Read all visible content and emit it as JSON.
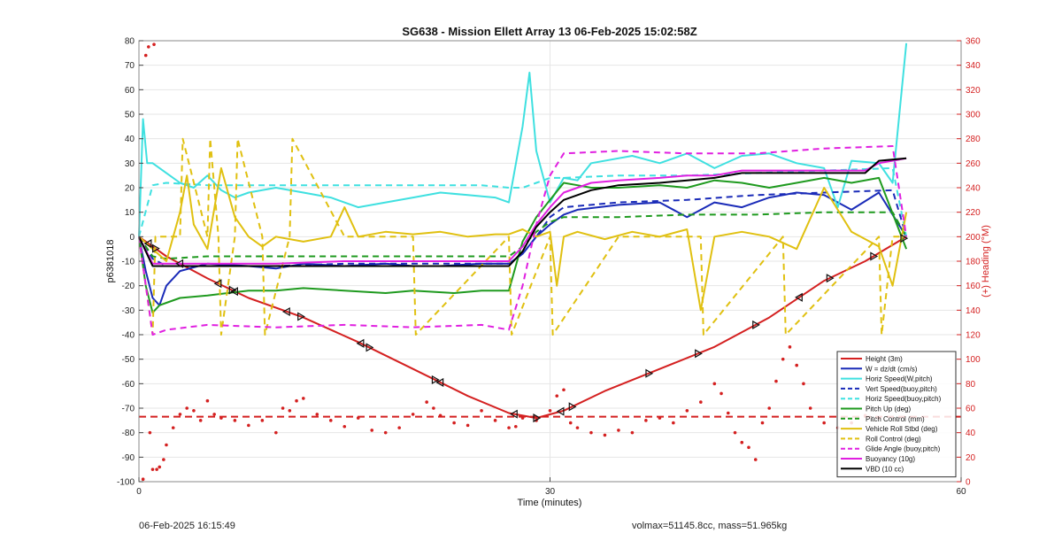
{
  "footer": {
    "timestamp": "06-Feb-2025 16:15:49",
    "summary": "volmax=51145.8cc, mass=51.965kg"
  },
  "chart_data": {
    "type": "line",
    "title": "SG638 - Mission Ellett Array 13 06-Feb-2025 15:02:58Z",
    "xlabel": "Time (minutes)",
    "ylabel": "p6381018",
    "ylabel_right": "(+) Heading (°M)",
    "xlim": [
      0,
      60
    ],
    "ylim": [
      -100,
      80
    ],
    "ylim_right": [
      0,
      360
    ],
    "xticks": [
      0,
      30,
      60
    ],
    "yticks": [
      -100,
      -90,
      -80,
      -70,
      -60,
      -50,
      -40,
      -30,
      -20,
      -10,
      0,
      10,
      20,
      30,
      40,
      50,
      60,
      70,
      80
    ],
    "yticks_right": [
      0,
      20,
      40,
      60,
      80,
      100,
      120,
      140,
      160,
      180,
      200,
      220,
      240,
      260,
      280,
      300,
      320,
      340,
      360
    ],
    "grid": true,
    "legend_position": "bottom-right",
    "colors": {
      "red": "#d42020",
      "blue": "#1a2bb8",
      "cyan": "#3fe0e0",
      "green": "#1f9a1f",
      "gold": "#e0c010",
      "magenta": "#e020e0",
      "black": "#000000"
    },
    "series": [
      {
        "name": "Height (3m)",
        "color": "red",
        "dash": false,
        "width": 2,
        "x": [
          0,
          2,
          5,
          8,
          12,
          16,
          20,
          24,
          27,
          29,
          31,
          34,
          38,
          42,
          46,
          50,
          53,
          56
        ],
        "y": [
          0,
          -8,
          -17,
          -25,
          -33,
          -43,
          -54,
          -65,
          -72,
          -74,
          -71,
          -63,
          -54,
          -45,
          -33,
          -18,
          -10,
          0
        ]
      },
      {
        "name": "W = dz/dt (cm/s)",
        "color": "blue",
        "dash": false,
        "width": 2,
        "x": [
          0,
          0.5,
          1,
          1.5,
          2,
          3,
          5,
          8,
          10,
          12,
          15,
          18,
          20,
          22,
          25,
          27,
          28,
          29,
          30,
          31,
          32,
          35,
          38,
          40,
          42,
          44,
          46,
          48,
          50,
          52,
          54,
          56
        ],
        "y": [
          0,
          -14,
          -25,
          -28,
          -20,
          -14,
          -11,
          -12,
          -13,
          -11,
          -12,
          -11,
          -12,
          -12,
          -11,
          -11,
          -7,
          0,
          5,
          9,
          11,
          13,
          14,
          8,
          14,
          12,
          16,
          18,
          17,
          11,
          18,
          0
        ]
      },
      {
        "name": "Horiz Speed(W,pitch)",
        "color": "cyan",
        "dash": false,
        "width": 2,
        "x": [
          0,
          0.3,
          0.6,
          1,
          2,
          3,
          4,
          5,
          6,
          7,
          8,
          10,
          12,
          14,
          16,
          18,
          20,
          22,
          24,
          26,
          27,
          28,
          28.5,
          29,
          30,
          31,
          32,
          33,
          36,
          38,
          40,
          42,
          44,
          46,
          48,
          50,
          51,
          52,
          54,
          55,
          56
        ],
        "y": [
          0,
          48,
          30,
          30,
          26,
          22,
          20,
          25,
          19,
          16,
          18,
          20,
          18,
          16,
          12,
          14,
          16,
          18,
          17,
          16,
          14,
          45,
          67,
          35,
          14,
          24,
          23,
          30,
          33,
          30,
          34,
          28,
          33,
          34,
          30,
          28,
          12,
          31,
          30,
          22,
          79
        ]
      },
      {
        "name": "Vert Speed(buoy,pitch)",
        "color": "blue",
        "dash": true,
        "width": 2,
        "x": [
          0,
          1,
          2,
          5,
          10,
          15,
          20,
          25,
          27,
          28,
          29,
          30,
          31,
          35,
          40,
          45,
          50,
          55,
          56
        ],
        "y": [
          0,
          -9,
          -12,
          -12,
          -12,
          -11,
          -11,
          -11,
          -11,
          -7,
          0,
          8,
          12,
          14,
          15,
          17,
          18,
          19,
          0
        ]
      },
      {
        "name": "Horiz Speed(buoy,pitch)",
        "color": "cyan",
        "dash": true,
        "width": 2,
        "x": [
          0,
          1,
          2,
          5,
          10,
          15,
          20,
          25,
          27,
          28,
          29,
          30,
          31,
          35,
          40,
          45,
          50,
          55,
          56
        ],
        "y": [
          0,
          21,
          22,
          21,
          21,
          21,
          21,
          21,
          20,
          20,
          22,
          24,
          24,
          25,
          25,
          26,
          27,
          28,
          0
        ]
      },
      {
        "name": "Pitch Up (deg)",
        "color": "green",
        "dash": false,
        "width": 2,
        "x": [
          0,
          0.5,
          1,
          1.5,
          2,
          3,
          5,
          8,
          10,
          12,
          15,
          18,
          20,
          23,
          25,
          27,
          28,
          29,
          30,
          31,
          32,
          33,
          35,
          38,
          40,
          42,
          44,
          46,
          48,
          50,
          52,
          54,
          56
        ],
        "y": [
          0,
          -20,
          -31,
          -28,
          -27,
          -25,
          -24,
          -22,
          -22,
          -21,
          -22,
          -23,
          -22,
          -23,
          -22,
          -22,
          -2,
          8,
          15,
          22,
          21,
          20,
          20,
          21,
          20,
          23,
          22,
          20,
          22,
          24,
          22,
          24,
          -5
        ]
      },
      {
        "name": "Pitch Control (mm)",
        "color": "green",
        "dash": true,
        "width": 2,
        "x": [
          0,
          1,
          2,
          5,
          10,
          15,
          20,
          25,
          27,
          28,
          29,
          30,
          31,
          35,
          40,
          45,
          50,
          55,
          56
        ],
        "y": [
          0,
          -8,
          -9,
          -8,
          -8,
          -8,
          -8,
          -8,
          -8,
          -4,
          2,
          6,
          8,
          8,
          9,
          9,
          10,
          10,
          0
        ]
      },
      {
        "name": "Vehicle Roll Stbd (deg)",
        "color": "gold",
        "dash": false,
        "width": 2,
        "x": [
          0,
          1,
          2,
          3,
          3.5,
          4,
          5,
          6,
          7,
          8,
          9,
          10,
          12,
          14,
          15,
          16,
          18,
          20,
          22,
          24,
          26,
          27,
          28,
          29,
          30,
          30.5,
          31,
          32,
          34,
          36,
          38,
          40,
          41,
          42,
          44,
          46,
          48,
          50,
          52,
          54,
          55,
          56
        ],
        "y": [
          0,
          -5,
          -10,
          10,
          25,
          5,
          -5,
          28,
          8,
          0,
          -4,
          0,
          -2,
          0,
          12,
          0,
          2,
          1,
          2,
          0,
          1,
          1,
          3,
          0,
          2,
          -20,
          0,
          2,
          -1,
          2,
          0,
          3,
          -30,
          0,
          2,
          0,
          -5,
          20,
          2,
          -4,
          -20,
          10
        ]
      },
      {
        "name": "Roll Control (deg)",
        "color": "gold",
        "dash": true,
        "width": 2,
        "x": [
          0,
          1,
          1.2,
          2,
          3,
          3.2,
          5,
          5.2,
          5.8,
          6,
          7,
          7.2,
          9,
          9.2,
          11,
          11.2,
          15,
          15.2,
          20,
          20.2,
          27,
          27.2,
          30,
          30.2,
          35,
          35.2,
          41,
          41.2,
          47,
          47.2,
          54,
          54.2,
          55,
          56
        ],
        "y": [
          0,
          -40,
          0,
          0,
          0,
          40,
          0,
          40,
          0,
          -40,
          0,
          40,
          0,
          -40,
          0,
          40,
          0,
          0,
          0,
          -40,
          0,
          -40,
          0,
          -40,
          0,
          0,
          0,
          -40,
          0,
          -40,
          0,
          -40,
          0,
          0
        ]
      },
      {
        "name": "Glide Angle (buoy,pitch)",
        "color": "magenta",
        "dash": true,
        "width": 2,
        "x": [
          0,
          1,
          2,
          5,
          10,
          15,
          20,
          25,
          27,
          28,
          29,
          30,
          31,
          35,
          40,
          45,
          50,
          55,
          56
        ],
        "y": [
          0,
          -40,
          -38,
          -36,
          -37,
          -36,
          -37,
          -36,
          -38,
          -20,
          5,
          25,
          34,
          35,
          34,
          34,
          36,
          37,
          0
        ]
      },
      {
        "name": "Buoyancy (10g)",
        "color": "magenta",
        "dash": false,
        "width": 2,
        "x": [
          0,
          1,
          2,
          5,
          10,
          15,
          20,
          25,
          27,
          28,
          29,
          30,
          31,
          33,
          35,
          38,
          40,
          42,
          44,
          46,
          50,
          53,
          54,
          56
        ],
        "y": [
          0,
          -11,
          -11,
          -11,
          -11,
          -10,
          -10,
          -10,
          -10,
          -4,
          5,
          12,
          18,
          22,
          23,
          24,
          25,
          25,
          27,
          27,
          27,
          27,
          30,
          32
        ]
      },
      {
        "name": "VBD (10 cc)",
        "color": "black",
        "dash": false,
        "width": 2,
        "x": [
          0,
          1,
          2,
          5,
          10,
          15,
          20,
          25,
          27,
          28,
          29,
          30,
          31,
          33,
          35,
          38,
          40,
          42,
          44,
          46,
          50,
          53,
          54,
          56
        ],
        "y": [
          0,
          -12,
          -12,
          -12,
          -12,
          -12,
          -12,
          -12,
          -12,
          -6,
          4,
          10,
          15,
          19,
          21,
          22,
          23,
          24,
          26,
          26,
          26,
          26,
          31,
          32
        ]
      }
    ],
    "heading_mean": {
      "value": 53,
      "color": "red",
      "dash": true
    },
    "heading_points": {
      "x": [
        0.3,
        0.8,
        1.0,
        1.3,
        1.5,
        1.8,
        2.0,
        2.5,
        3.0,
        3.5,
        4.0,
        4.5,
        5.0,
        5.5,
        6.0,
        7.0,
        8.0,
        9.0,
        10.0,
        10.5,
        11.0,
        11.5,
        12.0,
        13.0,
        14.0,
        15.0,
        16.0,
        17.0,
        18.0,
        19.0,
        20.0,
        21.0,
        21.5,
        22.0,
        23.0,
        24.0,
        25.0,
        26.0,
        27.0,
        27.5,
        28.0,
        29.0,
        30.0,
        30.5,
        31.0,
        31.5,
        32.0,
        33.0,
        34.0,
        35.0,
        36.0,
        37.0,
        38.0,
        39.0,
        40.0,
        41.0,
        42.0,
        42.5,
        43.0,
        43.5,
        44.0,
        44.5,
        45.0,
        45.5,
        46.0,
        46.5,
        47.0,
        47.5,
        48.0,
        48.5,
        49.0,
        50.0,
        51.0,
        52.0,
        53.0,
        54.0
      ],
      "y": [
        2,
        40,
        10,
        10,
        12,
        18,
        30,
        44,
        55,
        60,
        58,
        50,
        66,
        55,
        52,
        50,
        46,
        50,
        40,
        60,
        58,
        66,
        68,
        55,
        50,
        45,
        52,
        42,
        40,
        44,
        55,
        65,
        60,
        54,
        48,
        46,
        58,
        50,
        44,
        45,
        52,
        50,
        58,
        70,
        75,
        48,
        44,
        40,
        38,
        42,
        40,
        50,
        52,
        48,
        58,
        65,
        80,
        72,
        56,
        40,
        32,
        28,
        18,
        48,
        60,
        82,
        100,
        110,
        95,
        80,
        60,
        48,
        44,
        48,
        54,
        52
      ],
      "extra": [
        {
          "x": 0.5,
          "y": 348
        },
        {
          "x": 0.7,
          "y": 355
        },
        {
          "x": 1.1,
          "y": 357
        }
      ]
    },
    "height_markers": {
      "left": [
        0.7,
        3.0,
        5.8,
        7.0,
        10.8,
        16.2,
        22.0,
        27.4,
        30.8,
        48.2
      ],
      "right": [
        1.2,
        6.8,
        11.8,
        16.8,
        21.6,
        29.0,
        31.6,
        37.2,
        40.8,
        45.0,
        50.4,
        53.6,
        55.8
      ]
    }
  }
}
